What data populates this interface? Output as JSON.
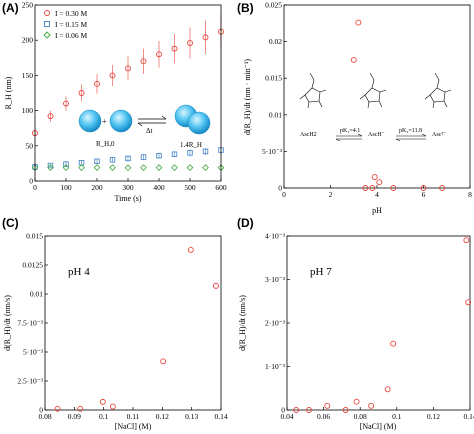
{
  "chart_data": [
    {
      "panel": "(A)",
      "type": "scatter",
      "xlabel": "Time (s)",
      "ylabel": "R_H (nm)",
      "xlim": [
        0,
        600
      ],
      "ylim": [
        0,
        250
      ],
      "xticks": [
        "0",
        "100",
        "200",
        "300",
        "400",
        "500",
        "600"
      ],
      "yticks": [
        "0",
        "50",
        "100",
        "150",
        "200",
        "250"
      ],
      "legend": {
        "placement": "top-left",
        "entries": [
          "I = 0.30 M",
          "I = 0.15 M",
          "I = 0.06 M"
        ]
      },
      "series": [
        {
          "name": "I = 0.30 M",
          "color": "#e8443a",
          "marker": "circle",
          "error_bars": true,
          "x": [
            0,
            50,
            100,
            150,
            200,
            250,
            300,
            350,
            400,
            450,
            500,
            550,
            600
          ],
          "y": [
            68,
            92,
            110,
            125,
            138,
            150,
            160,
            170,
            180,
            188,
            196,
            204,
            212
          ],
          "err": [
            5,
            8,
            10,
            12,
            14,
            15,
            17,
            18,
            19,
            21,
            22,
            24,
            26
          ]
        },
        {
          "name": "I = 0.15 M",
          "color": "#3b7fc4",
          "marker": "square",
          "error_bars": true,
          "x": [
            0,
            50,
            100,
            150,
            200,
            250,
            300,
            350,
            400,
            450,
            500,
            550,
            600
          ],
          "y": [
            20,
            22,
            24,
            26,
            28,
            30,
            32,
            34,
            36,
            38,
            40,
            42,
            44
          ],
          "err": [
            2,
            2,
            3,
            3,
            3,
            3,
            4,
            4,
            4,
            4,
            5,
            5,
            5
          ]
        },
        {
          "name": "I = 0.06 M",
          "color": "#3aa83a",
          "marker": "diamond",
          "error_bars": false,
          "x": [
            0,
            50,
            100,
            150,
            200,
            250,
            300,
            350,
            400,
            450,
            500,
            550,
            600
          ],
          "y": [
            19,
            19,
            19,
            19,
            19,
            19,
            19,
            19,
            19,
            19,
            19,
            19,
            19
          ]
        }
      ],
      "inset": {
        "label_start": "R_H,0",
        "label_dt": "Δt",
        "label_end": "1.4R_H"
      }
    },
    {
      "panel": "(B)",
      "type": "scatter",
      "xlabel": "pH",
      "ylabel": "d(R_H)/dt (nm · min⁻¹)",
      "xlim": [
        0,
        8
      ],
      "ylim": [
        0,
        0.025
      ],
      "xticks": [
        "0",
        "2",
        "4",
        "6",
        "8"
      ],
      "yticks": [
        "0",
        "5·10⁻³",
        "0.01",
        "0.015",
        "0.02",
        "0.025"
      ],
      "series": [
        {
          "marker": "open-circle",
          "color": "#e8443a",
          "x": [
            3.0,
            3.2,
            3.5,
            3.8,
            3.9,
            4.1,
            4.7,
            6.0,
            6.8
          ],
          "y": [
            0.0175,
            0.0226,
            0.0,
            0.0,
            0.0015,
            0.0008,
            0.0,
            0.0,
            0.0
          ]
        }
      ],
      "annotations": {
        "species": [
          "AscH2",
          "AscH⁻",
          "Asc²⁻"
        ],
        "pk1": "pK₁=4.1",
        "pk2": "pK₂=11.8"
      }
    },
    {
      "panel": "(C)",
      "type": "scatter",
      "title": "pH 4",
      "xlabel": "[NaCl] (M)",
      "ylabel": "d(R_H)/dt (nm/s)",
      "xlim": [
        0.07,
        0.14
      ],
      "ylim": [
        0,
        0.015
      ],
      "xticks": [
        "0.08",
        "0.09",
        "0.1",
        "0.11",
        "0.12",
        "0.13",
        "0.14"
      ],
      "yticks": [
        "0",
        "2.5·10⁻³",
        "5·10⁻³",
        "7.5·10⁻³",
        "0.01",
        "0.0125",
        "0.015"
      ],
      "series": [
        {
          "marker": "open-circle",
          "color": "#e8443a",
          "x": [
            0.075,
            0.084,
            0.093,
            0.097,
            0.117,
            0.128,
            0.138
          ],
          "y": [
            0.0001,
            0.0001,
            0.0007,
            0.0003,
            0.0042,
            0.0138,
            0.0107
          ]
        }
      ]
    },
    {
      "panel": "(D)",
      "type": "scatter",
      "title": "pH 7",
      "xlabel": "[NaCl] (M)",
      "ylabel": "d(R_H)/dt (nm/s)",
      "xlim": [
        0.04,
        0.14
      ],
      "ylim": [
        0,
        0.0042
      ],
      "xticks": [
        "0.04",
        "0.06",
        "0.08",
        "0.1",
        "0.12",
        "0.14"
      ],
      "yticks": [
        "0",
        "1·10⁻³",
        "2·10⁻³",
        "3·10⁻³",
        "4·10⁻³"
      ],
      "series": [
        {
          "marker": "open-circle",
          "color": "#e8443a",
          "x": [
            0.045,
            0.052,
            0.062,
            0.072,
            0.078,
            0.086,
            0.095,
            0.098,
            0.138,
            0.139
          ],
          "y": [
            0.0,
            0.0,
            0.0001,
            0.0,
            0.0002,
            0.0001,
            0.0005,
            0.0016,
            0.0041,
            0.0026
          ]
        }
      ]
    }
  ]
}
